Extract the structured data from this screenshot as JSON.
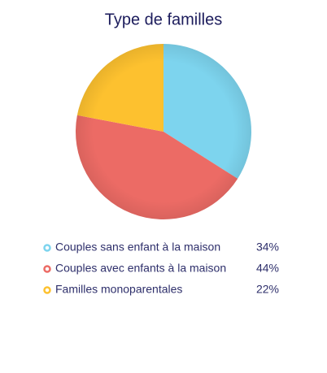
{
  "chart_data": {
    "type": "pie",
    "title": "Type de familles",
    "categories": [
      "Couples sans enfant à la maison",
      "Couples avec enfants à la maison",
      "Familles monoparentales"
    ],
    "values": [
      34,
      44,
      22
    ],
    "value_labels": [
      "34%",
      "44%",
      "22%"
    ],
    "colors": [
      "#7dd4ee",
      "#ec6b65",
      "#fdc12f"
    ]
  }
}
